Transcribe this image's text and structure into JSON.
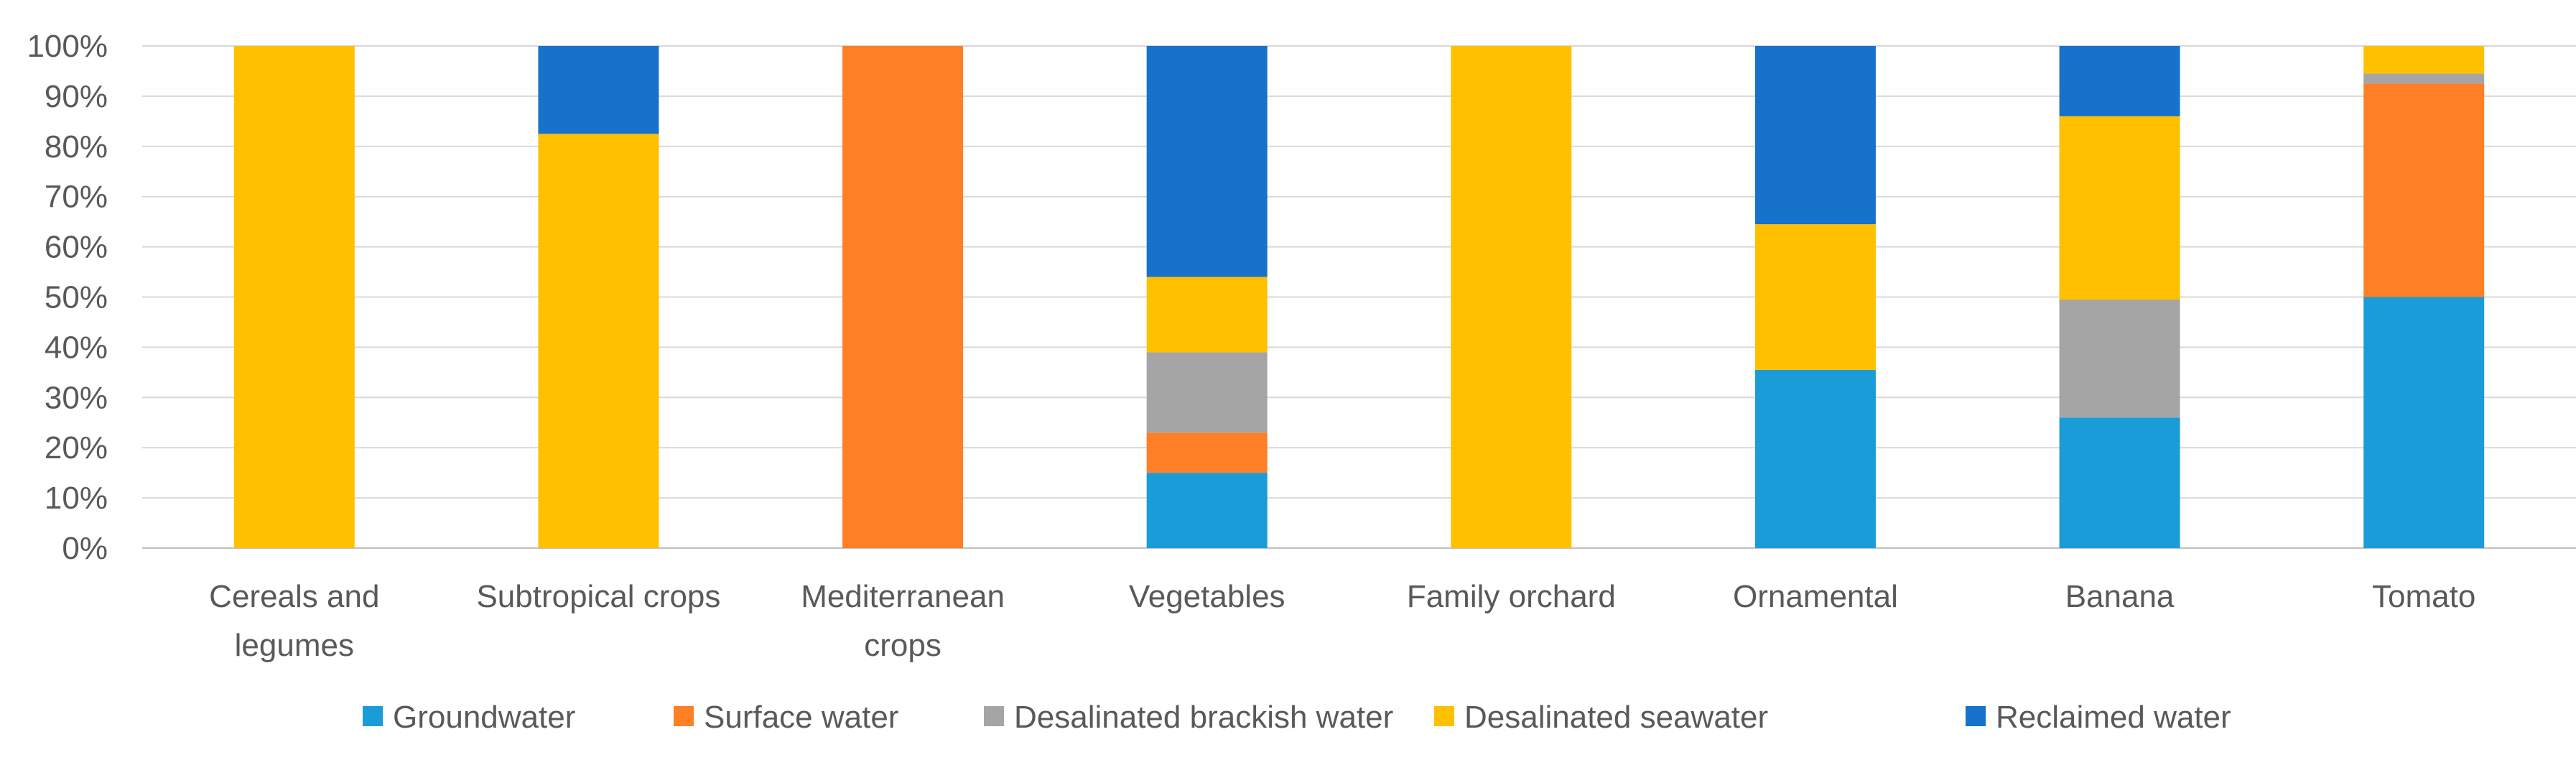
{
  "chart_data": {
    "type": "bar",
    "stacked": true,
    "normalized": true,
    "title": "",
    "xlabel": "",
    "ylabel": "",
    "ylim": [
      0,
      100
    ],
    "y_ticks": [
      "0%",
      "10%",
      "20%",
      "30%",
      "40%",
      "50%",
      "60%",
      "70%",
      "80%",
      "90%",
      "100%"
    ],
    "grid": true,
    "legend_position": "bottom",
    "categories": [
      [
        "Cereals and",
        "legumes"
      ],
      [
        "Subtropical crops"
      ],
      [
        "Mediterranean",
        "crops"
      ],
      [
        "Vegetables"
      ],
      [
        "Family orchard"
      ],
      [
        "Ornamental"
      ],
      [
        "Banana"
      ],
      [
        "Tomato"
      ]
    ],
    "series": [
      {
        "name": "Groundwater",
        "color": "#1a9cd8",
        "values": [
          0,
          0,
          0,
          15,
          0,
          35.5,
          26,
          50
        ]
      },
      {
        "name": "Surface water",
        "color": "#fe7f26",
        "values": [
          0,
          0,
          100,
          8,
          0,
          0,
          0,
          42.5
        ]
      },
      {
        "name": "Desalinated brackish water",
        "color": "#a5a5a5",
        "values": [
          0,
          0,
          0,
          16,
          0,
          0,
          23.5,
          2
        ]
      },
      {
        "name": "Desalinated seawater",
        "color": "#ffc000",
        "values": [
          100,
          82.5,
          0,
          15,
          100,
          29,
          36.5,
          5.5
        ]
      },
      {
        "name": "Reclaimed water",
        "color": "#1672cb",
        "values": [
          0,
          17.5,
          0,
          46,
          0,
          35.5,
          14,
          0
        ]
      }
    ]
  }
}
